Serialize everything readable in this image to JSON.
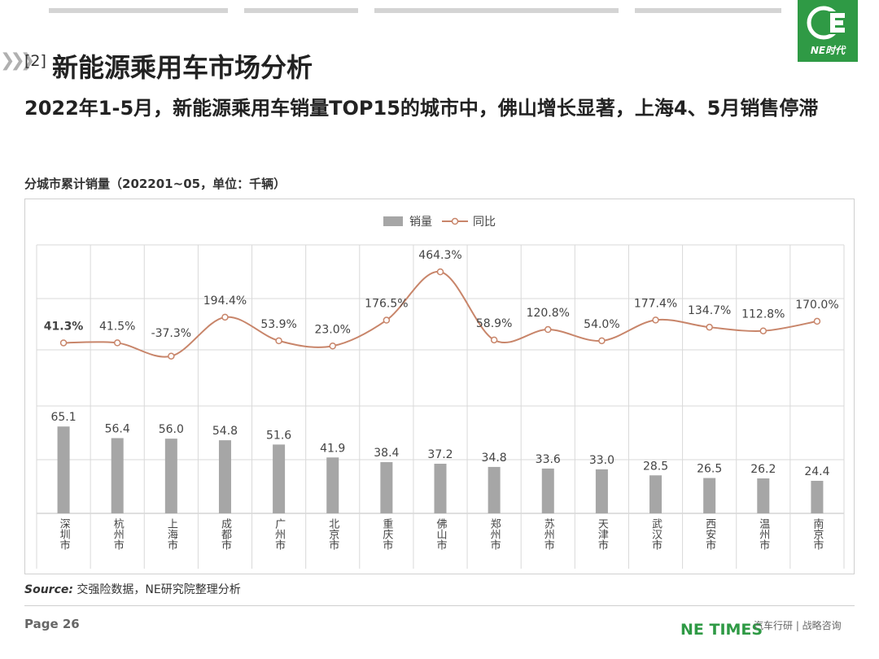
{
  "header": {
    "section_number": "[2]",
    "section_title": "新能源乘用车市场分析",
    "subtitle": "2022年1-5月，新能源乘用车销量TOP15的城市中，佛山增长显著，上海4、5月销售停滞",
    "logo_text": "NE时代"
  },
  "chart_title": "分城市累计销量（202201~05，单位：千辆）",
  "colors": {
    "bar": "#a6a6a6",
    "line": "#c8856a",
    "brand": "#2f9a45",
    "grid": "#d9d9d9"
  },
  "chart_data": {
    "type": "bar",
    "categories": [
      "深圳市",
      "杭州市",
      "上海市",
      "成都市",
      "广州市",
      "北京市",
      "重庆市",
      "佛山市",
      "郑州市",
      "苏州市",
      "天津市",
      "武汉市",
      "西安市",
      "温州市",
      "南京市"
    ],
    "series": [
      {
        "name": "销量",
        "type": "bar",
        "values": [
          65.1,
          56.4,
          56.0,
          54.8,
          51.6,
          41.9,
          38.4,
          37.2,
          34.8,
          33.6,
          33.0,
          28.5,
          26.5,
          26.2,
          24.4
        ],
        "labels": [
          "65.1",
          "56.4",
          "56.0",
          "54.8",
          "51.6",
          "41.9",
          "38.4",
          "37.2",
          "34.8",
          "33.6",
          "33.0",
          "28.5",
          "26.5",
          "26.2",
          "24.4"
        ]
      },
      {
        "name": "同比",
        "type": "line",
        "values": [
          41.3,
          41.5,
          -37.3,
          194.4,
          53.9,
          23.0,
          176.5,
          464.3,
          58.9,
          120.8,
          54.0,
          177.4,
          134.7,
          112.8,
          170.0
        ],
        "labels": [
          "41.3%",
          "41.5%",
          "-37.3%",
          "194.4%",
          "53.9%",
          "23.0%",
          "176.5%",
          "464.3%",
          "58.9%",
          "120.8%",
          "54.0%",
          "177.4%",
          "134.7%",
          "112.8%",
          "170.0%"
        ]
      }
    ],
    "legend": "top-center",
    "grid": true
  },
  "footer": {
    "source_label": "Source:",
    "source_text": "交强险数据，NE研究院整理分析",
    "page": "Page 26",
    "brand": "NE TIMES",
    "tagline": "汽车行研 | 战略咨询"
  }
}
